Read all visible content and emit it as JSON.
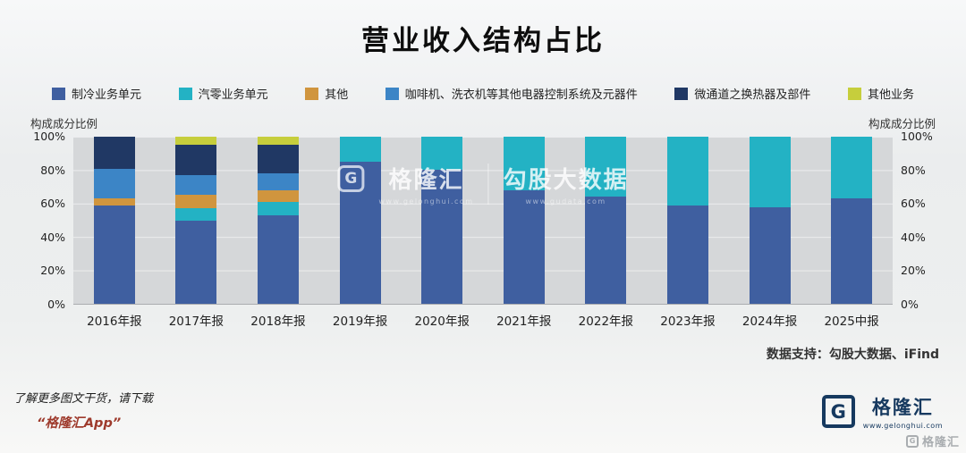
{
  "title": "营业收入结构占比",
  "legend": [
    {
      "label": "制冷业务单元",
      "color": "#3f5fa0"
    },
    {
      "label": "汽零业务单元",
      "color": "#23b2c4"
    },
    {
      "label": "其他",
      "color": "#d0953e"
    },
    {
      "label": "咖啡机、洗衣机等其他电器控制系统及元器件",
      "color": "#3c85c6"
    },
    {
      "label": "微通道之换热器及部件",
      "color": "#203864"
    },
    {
      "label": "其他业务",
      "color": "#c6ce3c"
    }
  ],
  "axis": {
    "left_caption": "构成成分比例",
    "right_caption": "构成成分比例",
    "ticks": [
      "100%",
      "80%",
      "60%",
      "40%",
      "20%",
      "0%"
    ]
  },
  "chart_data": {
    "type": "bar",
    "stacked": true,
    "ylim": [
      0,
      100
    ],
    "ylabel": "构成成分比例",
    "grid": true,
    "legend_position": "top",
    "categories": [
      "2016年报",
      "2017年报",
      "2018年报",
      "2019年报",
      "2020年报",
      "2021年报",
      "2022年报",
      "2023年报",
      "2024年报",
      "2025中报"
    ],
    "series": [
      {
        "name": "制冷业务单元",
        "color": "#3f5fa0",
        "values": [
          59,
          50,
          53,
          85,
          80,
          68,
          64,
          59,
          58,
          63
        ]
      },
      {
        "name": "汽零业务单元",
        "color": "#23b2c4",
        "values": [
          0,
          7,
          8,
          15,
          20,
          32,
          36,
          41,
          42,
          37
        ]
      },
      {
        "name": "其他",
        "color": "#d0953e",
        "values": [
          4,
          8,
          7,
          0,
          0,
          0,
          0,
          0,
          0,
          0
        ]
      },
      {
        "name": "咖啡机、洗衣机等其他电器控制系统及元器件",
        "color": "#3c85c6",
        "values": [
          18,
          12,
          10,
          0,
          0,
          0,
          0,
          0,
          0,
          0
        ]
      },
      {
        "name": "微通道之换热器及部件",
        "color": "#203864",
        "values": [
          19,
          18,
          17,
          0,
          0,
          0,
          0,
          0,
          0,
          0
        ]
      },
      {
        "name": "其他业务",
        "color": "#c6ce3c",
        "values": [
          0,
          5,
          5,
          0,
          0,
          0,
          0,
          0,
          0,
          0
        ]
      }
    ]
  },
  "watermark": {
    "brand": "格隆汇",
    "brand_glyph": "G",
    "brand_url": "www.gelonghui.com",
    "partner": "勾股大数据",
    "partner_url": "www.gudata.com"
  },
  "data_support": "数据支持：勾股大数据、iFind",
  "footer": {
    "promo_line1": "了解更多图文干货，请下载",
    "promo_line2": "“格隆汇App”",
    "brand_glyph": "G",
    "brand_name": "格隆汇",
    "brand_url": "www.gelonghui.com",
    "corner_glyph": "G",
    "corner_name": "格隆汇"
  }
}
